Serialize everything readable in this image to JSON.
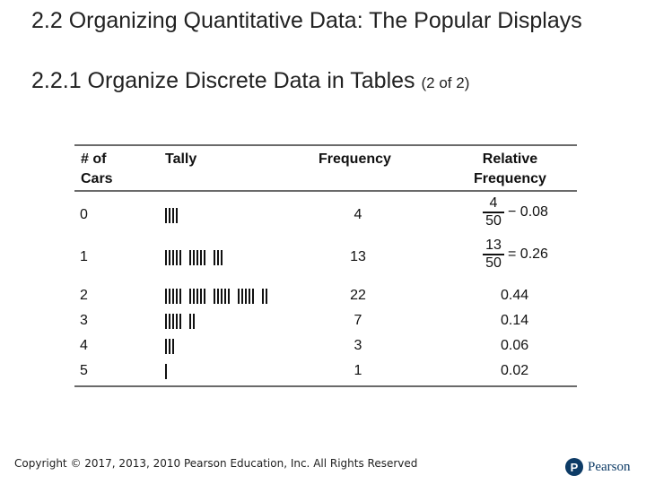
{
  "slide": {
    "title": "2.2 Organizing Quantitative Data: The Popular Displays",
    "subtitle": "2.2.1 Organize Discrete Data in Tables",
    "subtitle_note": "(2 of 2)"
  },
  "table": {
    "headers": {
      "cars_line1": "# of",
      "cars_line2": "Cars",
      "tally": "Tally",
      "frequency": "Frequency",
      "relfreq_line1": "Relative",
      "relfreq_line2": "Frequency"
    },
    "rows": [
      {
        "cars": "0",
        "tally_count": 4,
        "frequency": "4",
        "fraction": {
          "num": "4",
          "den": "50",
          "equals": "− 0.08"
        }
      },
      {
        "cars": "1",
        "tally_count": 13,
        "frequency": "13",
        "fraction": {
          "num": "13",
          "den": "50",
          "equals": "= 0.26"
        }
      },
      {
        "cars": "2",
        "tally_count": 22,
        "frequency": "22",
        "relfreq": "0.44"
      },
      {
        "cars": "3",
        "tally_count": 7,
        "frequency": "7",
        "relfreq": "0.14"
      },
      {
        "cars": "4",
        "tally_count": 3,
        "frequency": "3",
        "relfreq": "0.06"
      },
      {
        "cars": "5",
        "tally_count": 1,
        "frequency": "1",
        "relfreq": "0.02"
      }
    ]
  },
  "footer": {
    "copyright": "Copyright © 2017, 2013, 2010 Pearson Education, Inc. All Rights Reserved",
    "logo_mark": "P",
    "logo_text": "Pearson"
  },
  "colors": {
    "brand": "#0d3b66",
    "rule": "#6a6a6a"
  }
}
